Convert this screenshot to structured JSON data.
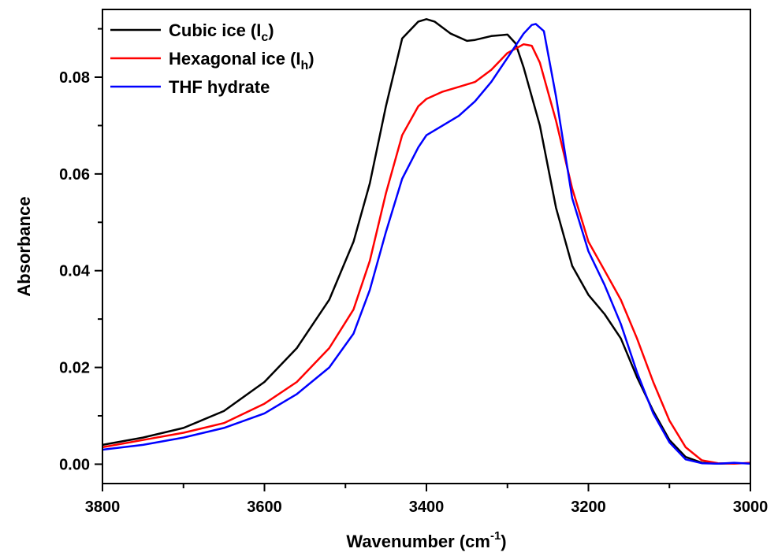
{
  "chart_data": {
    "type": "line",
    "xlabel": "Wavenumber (cm",
    "xlabel_sup": "-1",
    "xlabel_tail": ")",
    "ylabel": "Absorbance",
    "xlim": [
      3800,
      3000
    ],
    "ylim": [
      -0.004,
      0.094
    ],
    "x_axis_reversed": true,
    "x_ticks": [
      3800,
      3600,
      3400,
      3200,
      3000
    ],
    "x_tick_labels": [
      "3800",
      "3600",
      "3400",
      "3200",
      "3000"
    ],
    "y_ticks": [
      0.0,
      0.02,
      0.04,
      0.06,
      0.08
    ],
    "y_tick_labels": [
      "0.00",
      "0.02",
      "0.04",
      "0.06",
      "0.08"
    ],
    "grid": false,
    "legend_placement": "top-left",
    "series": [
      {
        "name": "Cubic ice (I",
        "name_sub": "c",
        "name_tail": ")",
        "color": "#000000",
        "x": [
          3800,
          3750,
          3700,
          3650,
          3600,
          3560,
          3520,
          3490,
          3470,
          3450,
          3430,
          3410,
          3400,
          3390,
          3370,
          3350,
          3340,
          3320,
          3300,
          3290,
          3280,
          3260,
          3240,
          3220,
          3200,
          3180,
          3160,
          3140,
          3120,
          3100,
          3080,
          3060,
          3040,
          3020,
          3000
        ],
        "y": [
          0.004,
          0.0055,
          0.0075,
          0.011,
          0.017,
          0.024,
          0.034,
          0.046,
          0.058,
          0.074,
          0.088,
          0.0915,
          0.092,
          0.0915,
          0.089,
          0.0875,
          0.0877,
          0.0885,
          0.0888,
          0.087,
          0.082,
          0.07,
          0.053,
          0.041,
          0.035,
          0.031,
          0.026,
          0.018,
          0.011,
          0.005,
          0.0015,
          0.0003,
          0.0001,
          0.0002,
          0.0002
        ]
      },
      {
        "name": "Hexagonal ice (I",
        "name_sub": "h",
        "name_tail": ")",
        "color": "#ff0000",
        "x": [
          3800,
          3750,
          3700,
          3650,
          3600,
          3560,
          3520,
          3490,
          3470,
          3450,
          3430,
          3410,
          3400,
          3380,
          3360,
          3340,
          3320,
          3300,
          3280,
          3270,
          3260,
          3240,
          3220,
          3200,
          3180,
          3160,
          3140,
          3120,
          3100,
          3080,
          3060,
          3040,
          3020,
          3000
        ],
        "y": [
          0.0035,
          0.005,
          0.0065,
          0.0085,
          0.0125,
          0.017,
          0.024,
          0.032,
          0.042,
          0.056,
          0.068,
          0.074,
          0.0755,
          0.077,
          0.078,
          0.079,
          0.0815,
          0.085,
          0.0868,
          0.0865,
          0.083,
          0.071,
          0.057,
          0.046,
          0.04,
          0.034,
          0.026,
          0.017,
          0.009,
          0.0035,
          0.0008,
          0.0002,
          0.0001,
          0.0003
        ]
      },
      {
        "name": "THF hydrate",
        "color": "#0000ff",
        "x": [
          3800,
          3750,
          3700,
          3650,
          3600,
          3560,
          3520,
          3490,
          3470,
          3450,
          3430,
          3410,
          3400,
          3380,
          3360,
          3340,
          3320,
          3300,
          3280,
          3270,
          3265,
          3255,
          3240,
          3220,
          3200,
          3180,
          3160,
          3140,
          3120,
          3100,
          3080,
          3060,
          3040,
          3020,
          3000
        ],
        "y": [
          0.003,
          0.004,
          0.0055,
          0.0075,
          0.0105,
          0.0145,
          0.02,
          0.027,
          0.036,
          0.048,
          0.059,
          0.0655,
          0.068,
          0.07,
          0.072,
          0.075,
          0.079,
          0.084,
          0.089,
          0.0908,
          0.091,
          0.0895,
          0.076,
          0.055,
          0.044,
          0.037,
          0.029,
          0.019,
          0.0105,
          0.0045,
          0.001,
          0.0002,
          0.0001,
          0.0003,
          0.0001
        ]
      }
    ]
  }
}
